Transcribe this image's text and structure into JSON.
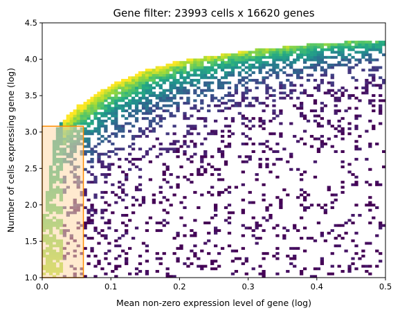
{
  "chart_data": {
    "type": "heatmap",
    "title": "Gene filter: 23993 cells x 16620 genes",
    "xlabel": "Mean non-zero expression level of gene (log)",
    "ylabel": "Number of cells expressing gene (log)",
    "xlim": [
      0.0,
      0.5
    ],
    "ylim": [
      1.0,
      4.5
    ],
    "xticks": [
      "0.0",
      "0.1",
      "0.2",
      "0.3",
      "0.4",
      "0.5"
    ],
    "yticks": [
      "1.0",
      "1.5",
      "2.0",
      "2.5",
      "3.0",
      "3.5",
      "4.0",
      "4.5"
    ],
    "colormap": "viridis",
    "grid": false,
    "density_ridge": {
      "description_free": true,
      "x": [
        0.0,
        0.02,
        0.05,
        0.1,
        0.15,
        0.2,
        0.3,
        0.4,
        0.5
      ],
      "y_upper": [
        1.7,
        3.05,
        3.35,
        3.65,
        3.85,
        3.98,
        4.12,
        4.22,
        4.27
      ]
    },
    "filter_region": {
      "x": [
        0.0,
        0.06
      ],
      "y": [
        1.0,
        3.08
      ],
      "fill": "#ffd9a8",
      "edge": "#ff8c00"
    },
    "colors": {
      "low": "#440154",
      "mid": "#21918c",
      "high": "#fde725"
    }
  }
}
